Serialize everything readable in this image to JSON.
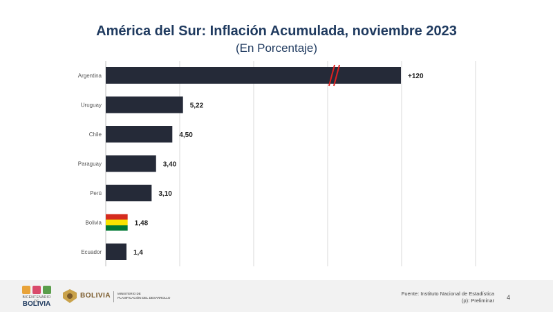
{
  "chart_data": {
    "type": "bar",
    "orientation": "horizontal",
    "title": "América del Sur: Inflación Acumulada, noviembre 2023",
    "subtitle": "(En Porcentaje)",
    "categories": [
      "Argentina",
      "Uruguay",
      "Chile",
      "Paraguay",
      "Perú",
      "Bolivia",
      "Ecuador"
    ],
    "values": [
      120,
      5.22,
      4.5,
      3.4,
      3.1,
      1.48,
      1.4
    ],
    "labels": [
      "+120",
      "5,22",
      "4,50",
      "3,40",
      "3,10",
      "1,48",
      "1,4"
    ],
    "axis_break": true,
    "xlim": [
      0,
      20
    ],
    "grid": true,
    "highlight": "Bolivia"
  },
  "colors": {
    "bar": "#252a38",
    "break_mark": "#e02020",
    "title": "#1f3a5f",
    "flag_red": "#d52b1e",
    "flag_yellow": "#f9e300",
    "flag_green": "#007934"
  },
  "footer": {
    "logo_small": "BICENTENARIO DE",
    "logo_big": "BOLIVIA",
    "ministry_name": "BOLIVIA",
    "ministry_line1": "MINISTERIO DE",
    "ministry_line2": "PLANIFICACIÓN DEL DESARROLLO",
    "source_line1": "Fuente: Instituto Nacional de Estadística",
    "source_line2": "(p): Preliminar",
    "page_number": "4"
  }
}
